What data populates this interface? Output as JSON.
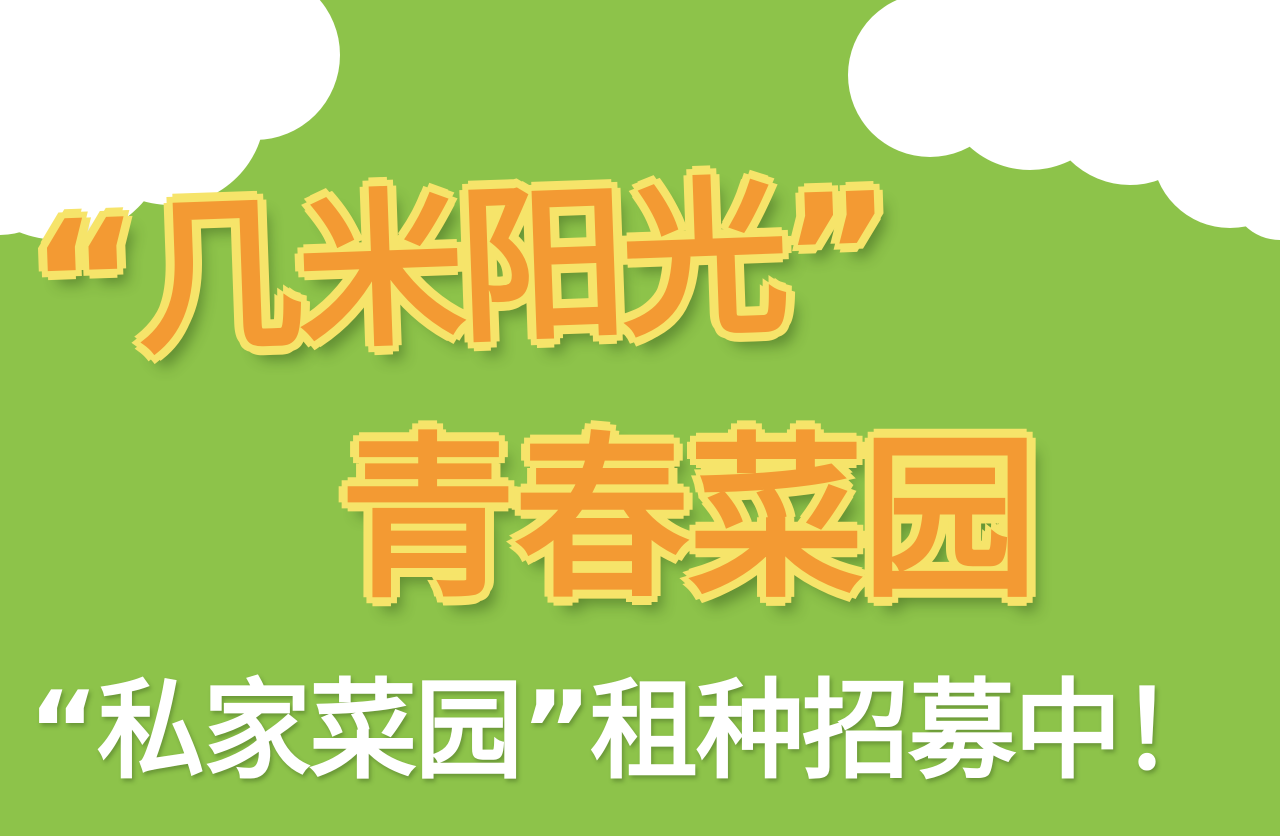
{
  "colors": {
    "background": "#8DC34A",
    "cloud": "#FFFFFF",
    "title_fill": "#F39A33",
    "title_outline": "#F6E46A",
    "subtitle": "#FFFFFF"
  },
  "title": {
    "line1": "“几米阳光”",
    "line2": "青春菜园"
  },
  "subtitle": "“私家菜园”租种招募中！"
}
